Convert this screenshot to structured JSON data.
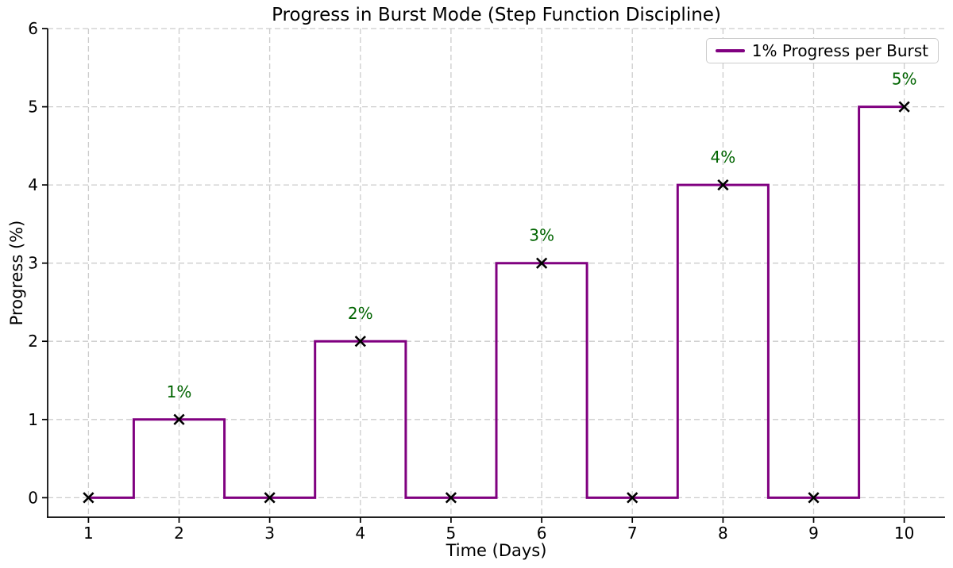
{
  "chart_data": {
    "type": "line",
    "subtype": "step",
    "step_style": "mid",
    "title": "Progress in Burst Mode (Step Function Discipline)",
    "xlabel": "Time (Days)",
    "ylabel": "Progress (%)",
    "x": [
      1,
      2,
      3,
      4,
      5,
      6,
      7,
      8,
      9,
      10
    ],
    "y": [
      0,
      1,
      0,
      2,
      0,
      3,
      0,
      4,
      0,
      5
    ],
    "xticks": [
      1,
      2,
      3,
      4,
      5,
      6,
      7,
      8,
      9,
      10
    ],
    "yticks": [
      0,
      1,
      2,
      3,
      4,
      5,
      6
    ],
    "xlim": [
      0.55,
      10.45
    ],
    "ylim": [
      -0.25,
      6.0
    ],
    "grid": true,
    "grid_style": "dashed",
    "marker": "x",
    "annotations": [
      {
        "x": 2,
        "y": 1,
        "label": "1%"
      },
      {
        "x": 4,
        "y": 2,
        "label": "2%"
      },
      {
        "x": 6,
        "y": 3,
        "label": "3%"
      },
      {
        "x": 8,
        "y": 4,
        "label": "4%"
      },
      {
        "x": 10,
        "y": 5,
        "label": "5%"
      }
    ],
    "legend": {
      "label": "1% Progress per Burst",
      "position": "upper right"
    },
    "colors": {
      "line": "#800080",
      "marker": "#000000",
      "annotation": "#006400",
      "grid": "#cccccc",
      "axis": "#000000",
      "text": "#000000",
      "legend_border": "#cccccc",
      "background": "#ffffff"
    }
  }
}
